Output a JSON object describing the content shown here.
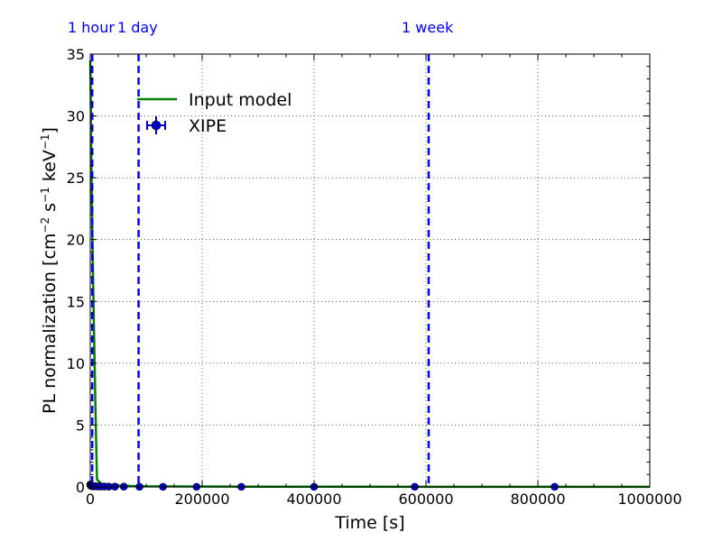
{
  "chart_data": {
    "type": "line",
    "title": "",
    "xlabel": "Time [s]",
    "ylabel_main": "PL normalization [cm",
    "ylabel_sup1": "−2",
    "ylabel_mid": " s",
    "ylabel_sup2": "−1",
    "ylabel_mid2": " keV",
    "ylabel_sup3": "−1",
    "ylabel_end": "]",
    "xlim": [
      0,
      1000000
    ],
    "ylim": [
      0,
      35
    ],
    "x_ticks": [
      0,
      200000,
      400000,
      600000,
      800000,
      1000000
    ],
    "x_tick_labels": [
      "0",
      "200000",
      "400000",
      "600000",
      "800000",
      "1000000"
    ],
    "y_ticks": [
      0,
      5,
      10,
      15,
      20,
      25,
      30,
      35
    ],
    "y_tick_labels": [
      "0",
      "5",
      "10",
      "15",
      "20",
      "25",
      "30",
      "35"
    ],
    "grid": true,
    "legend_position": "top-left",
    "series": [
      {
        "name": "Input model",
        "kind": "line",
        "color": "#008000",
        "x": [
          0,
          600,
          1200,
          1800,
          2500,
          3600,
          5000,
          7000,
          9000,
          12000,
          20000,
          50000,
          100000,
          300000,
          600000,
          1000000
        ],
        "y": [
          34.5,
          33.0,
          30.0,
          27.0,
          24.5,
          21.0,
          17.0,
          12.0,
          7.0,
          0.6,
          0.25,
          0.1,
          0.05,
          0.02,
          0.01,
          0.005
        ]
      },
      {
        "name": "XIPE",
        "kind": "errorbar",
        "color": "#0000cc",
        "x": [
          100,
          300,
          600,
          1000,
          1500,
          2200,
          3000,
          4000,
          6000,
          9000,
          13000,
          18000,
          25000,
          33000,
          44000,
          60000,
          88000,
          130000,
          190000,
          270000,
          400000,
          580000,
          830000
        ],
        "y": [
          0.2,
          0.15,
          0.12,
          0.1,
          0.09,
          0.08,
          0.07,
          0.06,
          0.05,
          0.05,
          0.04,
          0.03,
          0.03,
          0.02,
          0.02,
          0.02,
          0.01,
          0.01,
          0.01,
          0.01,
          0.01,
          0.01,
          0.01
        ]
      }
    ],
    "vlines": [
      {
        "x": 3600,
        "label": "1 hour",
        "color": "#0000ff"
      },
      {
        "x": 86400,
        "label": "1 day",
        "color": "#0000ff"
      },
      {
        "x": 604800,
        "label": "1 week",
        "color": "#0000ff"
      }
    ]
  }
}
